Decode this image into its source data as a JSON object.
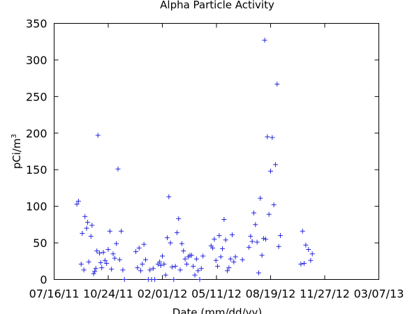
{
  "chart_data": {
    "type": "scatter",
    "title": "Alpha Particle Activity",
    "xlabel": "Date (mm/dd/yy)",
    "ylabel": "pCi/m",
    "ylabel_sup": "3",
    "xlim": [
      "2011-07-16",
      "2013-03-07"
    ],
    "ylim": [
      0,
      350
    ],
    "x_ticks": [
      {
        "date": "2011-07-16",
        "label": "07/16/11"
      },
      {
        "date": "2011-10-24",
        "label": "10/24/11"
      },
      {
        "date": "2012-02-01",
        "label": "02/01/12"
      },
      {
        "date": "2012-05-11",
        "label": "05/11/12"
      },
      {
        "date": "2012-08-19",
        "label": "08/19/12"
      },
      {
        "date": "2012-11-27",
        "label": "11/27/12"
      },
      {
        "date": "2013-03-07",
        "label": "03/07/13"
      }
    ],
    "y_ticks": [
      0,
      50,
      100,
      150,
      200,
      250,
      300,
      350
    ],
    "grid": false,
    "marker": "+",
    "color": "#2222dd",
    "series": [
      {
        "points": [
          {
            "x": "2011-08-27",
            "y": 103
          },
          {
            "x": "2011-08-30",
            "y": 107
          },
          {
            "x": "2011-09-04",
            "y": 21
          },
          {
            "x": "2011-09-06",
            "y": 63
          },
          {
            "x": "2011-09-09",
            "y": 13
          },
          {
            "x": "2011-09-11",
            "y": 86
          },
          {
            "x": "2011-09-14",
            "y": 70
          },
          {
            "x": "2011-09-16",
            "y": 78
          },
          {
            "x": "2011-09-18",
            "y": 24
          },
          {
            "x": "2011-09-22",
            "y": 59
          },
          {
            "x": "2011-09-24",
            "y": 74
          },
          {
            "x": "2011-09-27",
            "y": 8
          },
          {
            "x": "2011-09-29",
            "y": 11
          },
          {
            "x": "2011-10-01",
            "y": 15
          },
          {
            "x": "2011-10-03",
            "y": 39
          },
          {
            "x": "2011-10-05",
            "y": 197
          },
          {
            "x": "2011-10-08",
            "y": 36
          },
          {
            "x": "2011-10-10",
            "y": 23
          },
          {
            "x": "2011-10-12",
            "y": 16
          },
          {
            "x": "2011-10-15",
            "y": 37
          },
          {
            "x": "2011-10-18",
            "y": 26
          },
          {
            "x": "2011-10-21",
            "y": 22
          },
          {
            "x": "2011-10-24",
            "y": 41
          },
          {
            "x": "2011-10-27",
            "y": 66
          },
          {
            "x": "2011-10-30",
            "y": 14
          },
          {
            "x": "2011-11-02",
            "y": 35
          },
          {
            "x": "2011-11-05",
            "y": 29
          },
          {
            "x": "2011-11-08",
            "y": 49
          },
          {
            "x": "2011-11-11",
            "y": 151
          },
          {
            "x": "2011-11-14",
            "y": 27
          },
          {
            "x": "2011-11-17",
            "y": 66
          },
          {
            "x": "2011-11-20",
            "y": 13
          },
          {
            "x": "2011-11-23",
            "y": 0
          },
          {
            "x": "2011-12-14",
            "y": 38
          },
          {
            "x": "2011-12-17",
            "y": 16
          },
          {
            "x": "2011-12-20",
            "y": 43
          },
          {
            "x": "2011-12-23",
            "y": 12
          },
          {
            "x": "2011-12-26",
            "y": 21
          },
          {
            "x": "2011-12-29",
            "y": 48
          },
          {
            "x": "2012-01-01",
            "y": 27
          },
          {
            "x": "2012-01-06",
            "y": 0
          },
          {
            "x": "2012-01-09",
            "y": 13
          },
          {
            "x": "2012-01-12",
            "y": 0
          },
          {
            "x": "2012-01-15",
            "y": 15
          },
          {
            "x": "2012-01-18",
            "y": 0
          },
          {
            "x": "2012-01-24",
            "y": 21
          },
          {
            "x": "2012-01-27",
            "y": 24
          },
          {
            "x": "2012-01-29",
            "y": 19
          },
          {
            "x": "2012-02-01",
            "y": 32
          },
          {
            "x": "2012-02-04",
            "y": 21
          },
          {
            "x": "2012-02-07",
            "y": 6
          },
          {
            "x": "2012-02-10",
            "y": 57
          },
          {
            "x": "2012-02-13",
            "y": 113
          },
          {
            "x": "2012-02-16",
            "y": 50
          },
          {
            "x": "2012-02-19",
            "y": 17
          },
          {
            "x": "2012-02-22",
            "y": 0
          },
          {
            "x": "2012-02-25",
            "y": 18
          },
          {
            "x": "2012-02-28",
            "y": 64
          },
          {
            "x": "2012-03-02",
            "y": 83
          },
          {
            "x": "2012-03-05",
            "y": 13
          },
          {
            "x": "2012-03-08",
            "y": 49
          },
          {
            "x": "2012-03-11",
            "y": 39
          },
          {
            "x": "2012-03-14",
            "y": 28
          },
          {
            "x": "2012-03-17",
            "y": 21
          },
          {
            "x": "2012-03-20",
            "y": 31
          },
          {
            "x": "2012-03-23",
            "y": 33
          },
          {
            "x": "2012-03-26",
            "y": 33
          },
          {
            "x": "2012-03-29",
            "y": 18
          },
          {
            "x": "2012-04-01",
            "y": 6
          },
          {
            "x": "2012-04-04",
            "y": 28
          },
          {
            "x": "2012-04-07",
            "y": 12
          },
          {
            "x": "2012-04-10",
            "y": 0
          },
          {
            "x": "2012-04-13",
            "y": 15
          },
          {
            "x": "2012-04-16",
            "y": 32
          },
          {
            "x": "2012-05-01",
            "y": 46
          },
          {
            "x": "2012-05-04",
            "y": 43
          },
          {
            "x": "2012-05-07",
            "y": 55
          },
          {
            "x": "2012-05-10",
            "y": 26
          },
          {
            "x": "2012-05-13",
            "y": 18
          },
          {
            "x": "2012-05-16",
            "y": 60
          },
          {
            "x": "2012-05-19",
            "y": 31
          },
          {
            "x": "2012-05-22",
            "y": 42
          },
          {
            "x": "2012-05-25",
            "y": 82
          },
          {
            "x": "2012-05-28",
            "y": 54
          },
          {
            "x": "2012-05-31",
            "y": 12
          },
          {
            "x": "2012-06-03",
            "y": 16
          },
          {
            "x": "2012-06-06",
            "y": 28
          },
          {
            "x": "2012-06-09",
            "y": 61
          },
          {
            "x": "2012-06-12",
            "y": 24
          },
          {
            "x": "2012-06-15",
            "y": 31
          },
          {
            "x": "2012-06-28",
            "y": 27
          },
          {
            "x": "2012-07-10",
            "y": 44
          },
          {
            "x": "2012-07-13",
            "y": 59
          },
          {
            "x": "2012-07-16",
            "y": 52
          },
          {
            "x": "2012-07-19",
            "y": 91
          },
          {
            "x": "2012-07-22",
            "y": 75
          },
          {
            "x": "2012-07-25",
            "y": 51
          },
          {
            "x": "2012-07-28",
            "y": 9
          },
          {
            "x": "2012-07-31",
            "y": 111
          },
          {
            "x": "2012-08-03",
            "y": 33
          },
          {
            "x": "2012-08-06",
            "y": 56
          },
          {
            "x": "2012-08-08",
            "y": 327
          },
          {
            "x": "2012-08-10",
            "y": 55
          },
          {
            "x": "2012-08-13",
            "y": 195
          },
          {
            "x": "2012-08-16",
            "y": 89
          },
          {
            "x": "2012-08-19",
            "y": 148
          },
          {
            "x": "2012-08-22",
            "y": 194
          },
          {
            "x": "2012-08-25",
            "y": 102
          },
          {
            "x": "2012-08-28",
            "y": 157
          },
          {
            "x": "2012-08-31",
            "y": 267
          },
          {
            "x": "2012-09-03",
            "y": 45
          },
          {
            "x": "2012-09-06",
            "y": 60
          },
          {
            "x": "2012-10-14",
            "y": 21
          },
          {
            "x": "2012-10-17",
            "y": 66
          },
          {
            "x": "2012-10-20",
            "y": 22
          },
          {
            "x": "2012-10-23",
            "y": 47
          },
          {
            "x": "2012-10-28",
            "y": 41
          },
          {
            "x": "2012-11-01",
            "y": 26
          },
          {
            "x": "2012-11-04",
            "y": 35
          }
        ]
      }
    ]
  }
}
